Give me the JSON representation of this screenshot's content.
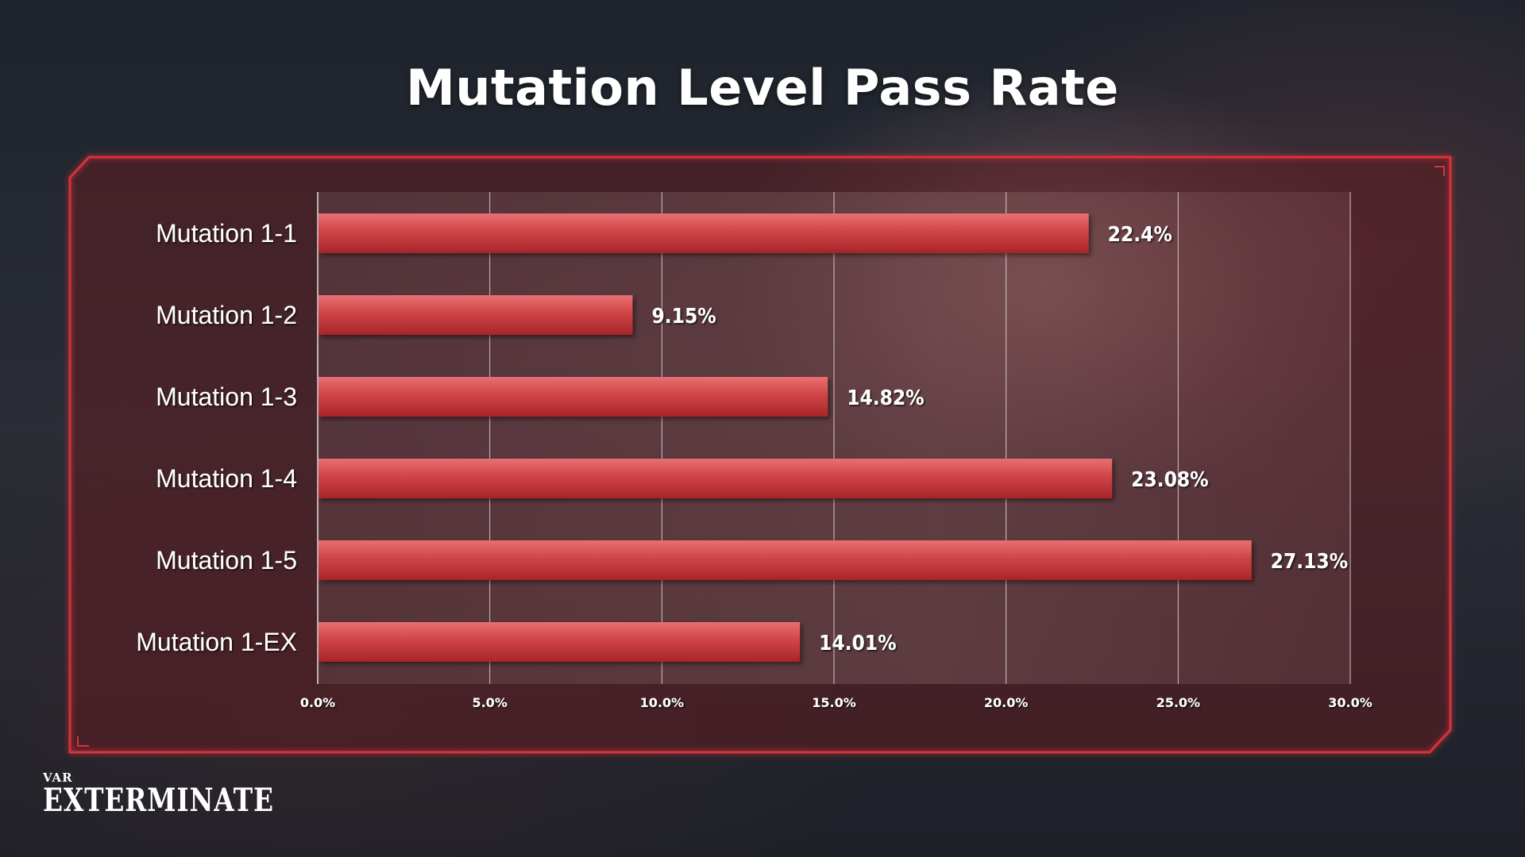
{
  "chart_data": {
    "type": "bar",
    "orientation": "horizontal",
    "title": "Mutation Level Pass Rate",
    "categories": [
      "Mutation 1-1",
      "Mutation 1-2",
      "Mutation 1-3",
      "Mutation 1-4",
      "Mutation 1-5",
      "Mutation 1-EX"
    ],
    "values": [
      22.4,
      9.15,
      14.82,
      23.08,
      27.13,
      14.01
    ],
    "value_labels": [
      "22.4%",
      "9.15%",
      "14.82%",
      "23.08%",
      "27.13%",
      "14.01%"
    ],
    "xlim": [
      0,
      30
    ],
    "xticks": [
      0,
      5,
      10,
      15,
      20,
      25,
      30
    ],
    "xtick_labels": [
      "0.0%",
      "5.0%",
      "10.0%",
      "15.0%",
      "20.0%",
      "25.0%",
      "30.0%"
    ],
    "grid": "vertical",
    "bar_color": "#c9393c",
    "xlabel": "",
    "ylabel": ""
  },
  "logo": {
    "small": "VAR",
    "big": "EXTERMINATE"
  },
  "colors": {
    "frame": "#d8313a",
    "bar_top": "#e87072",
    "bar_bottom": "#a82528"
  }
}
